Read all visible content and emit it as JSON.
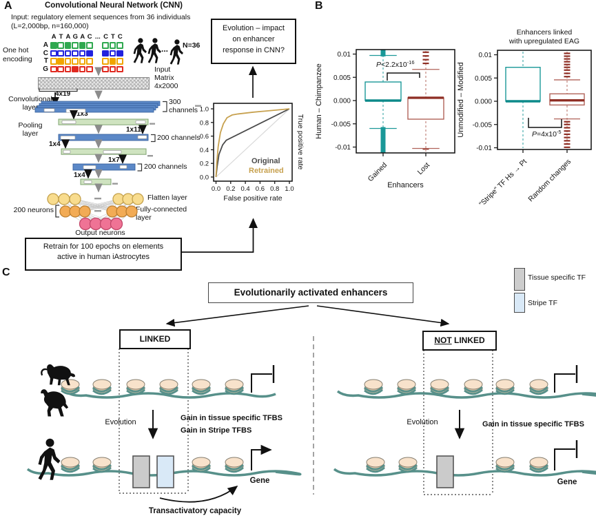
{
  "panel_a": {
    "label": "A",
    "title": "Convolutional Neural Network (CNN)",
    "input_line1": "Input: regulatory element sequences from 36 individuals",
    "input_line2": "(L=2,000bp, n=160,000)",
    "one_hot": {
      "label1": "One hot",
      "label2": "encoding",
      "columns_left": [
        "A",
        "T",
        "A",
        "G",
        "A",
        "C"
      ],
      "dots": "...",
      "columns_right": [
        "C",
        "T",
        "C"
      ],
      "rows": [
        {
          "base": "A",
          "color": "#2fa84f",
          "left": [
            1,
            0,
            1,
            0,
            1,
            0
          ],
          "right": [
            0,
            0,
            0
          ]
        },
        {
          "base": "C",
          "color": "#2222dd",
          "left": [
            0,
            0,
            0,
            0,
            0,
            1
          ],
          "right": [
            1,
            0,
            1
          ]
        },
        {
          "base": "T",
          "color": "#f0a500",
          "left": [
            0,
            1,
            0,
            0,
            0,
            0
          ],
          "right": [
            0,
            1,
            0
          ]
        },
        {
          "base": "G",
          "color": "#e02a21",
          "left": [
            0,
            0,
            0,
            1,
            0,
            0
          ],
          "right": [
            0,
            0,
            0
          ]
        }
      ]
    },
    "n_label": "N=36",
    "matrix_label1": "Input",
    "matrix_label2": "Matrix",
    "matrix_label3": "4x2000",
    "conv_label1": "Convolutional",
    "conv_label2": "layer",
    "pool_label1": "Pooling",
    "pool_label2": "layer",
    "k_4x19": "4x19",
    "k_1x3": "1x3",
    "k_1x11": "1x11",
    "k_1x4a": "1x4",
    "k_1x7": "1x7",
    "k_1x4b": "1x4",
    "ch300_1": "300",
    "ch300_2": "channels",
    "ch200a": "200 channels",
    "ch200b": "200 channels",
    "flatten_label": "Flatten layer",
    "neurons200": "200 neurons",
    "fc_label1": "Fully-connected",
    "fc_label2": "layer",
    "output_label": "Output neurons",
    "retrain_line1": "Retrain for 100 epochs on elements",
    "retrain_line2": "active in human iAstrocytes",
    "evolution_line1": "Evolution – impact",
    "evolution_line2": "on enhancer",
    "evolution_line3": "response in CNN?"
  },
  "panel_b": {
    "label": "B"
  },
  "chart_data": [
    {
      "type": "line",
      "name": "roc-curve",
      "xlabel": "False positive rate",
      "ylabel": "True positive rate",
      "xlim": [
        0,
        1
      ],
      "ylim": [
        0,
        1
      ],
      "xticks": [
        "0.0",
        "0.2",
        "0.4",
        "0.6",
        "0.8",
        "1.0"
      ],
      "yticks": [
        "0.0",
        "0.2",
        "0.4",
        "0.6",
        "0.8",
        "1.0"
      ],
      "series": [
        {
          "name": "Diagonal",
          "color": "#d9d9d9",
          "width": 1.2,
          "points": [
            [
              0,
              0
            ],
            [
              1,
              1
            ]
          ]
        },
        {
          "name": "Original",
          "color": "#4a4a4a",
          "width": 1.8,
          "points": [
            [
              0,
              0
            ],
            [
              0.015,
              0.15
            ],
            [
              0.04,
              0.33
            ],
            [
              0.09,
              0.47
            ],
            [
              0.14,
              0.54
            ],
            [
              1,
              1
            ]
          ]
        },
        {
          "name": "Retrained",
          "color": "#c7a14f",
          "width": 1.8,
          "points": [
            [
              0,
              0
            ],
            [
              0.01,
              0.2
            ],
            [
              0.03,
              0.45
            ],
            [
              0.06,
              0.65
            ],
            [
              0.1,
              0.78
            ],
            [
              0.15,
              0.87
            ],
            [
              0.22,
              0.91
            ],
            [
              0.3,
              0.925
            ],
            [
              0.5,
              0.95
            ],
            [
              0.75,
              0.975
            ],
            [
              1,
              1
            ]
          ]
        }
      ],
      "legend": [
        {
          "name": "Original",
          "color": "#4a4a4a"
        },
        {
          "name": "Retrained",
          "color": "#c7a14f"
        }
      ]
    },
    {
      "type": "boxplot",
      "name": "gained-lost-boxplot",
      "ylabel": "Human – Chimpanzee",
      "xlabel": "Enhancers",
      "ylim": [
        -0.0112,
        0.0109
      ],
      "yticks": [
        0.01,
        0.005,
        0,
        -0.005,
        -0.01
      ],
      "ytick_labels": [
        "0.01",
        "0.005",
        "0.000",
        "-0.005",
        "-0.01"
      ],
      "p_prefix": "P",
      "p_mid": "<2.2x10",
      "p_exp": "-16",
      "boxes": [
        {
          "label": "Gained",
          "color": "#1a9898",
          "median_color": "#0d8a8a",
          "q1": 0,
          "q3": 0.004,
          "median": 0,
          "whisker_high": 0.0097,
          "whisker_low": -0.006,
          "solid_high": [
            0.0095,
            0.0109
          ],
          "solid_low": [
            -0.0112,
            -0.0057
          ],
          "outlier_dashes_high": [],
          "outlier_dashes_low": []
        },
        {
          "label": "Lost",
          "color": "#b06258",
          "median_color": "#8f2f25",
          "q1": -0.004,
          "q3": 0.0006,
          "median": 0.0006,
          "whisker_high": 0.0067,
          "whisker_low": -0.0103,
          "outlier_dashes_high": [
            0.0104,
            0.0096,
            0.0088,
            0.008
          ],
          "outlier_dashes_low": [
            -0.0104
          ]
        }
      ]
    },
    {
      "type": "boxplot",
      "name": "stripe-random-boxplot",
      "title1": "Enhancers linked",
      "title2": "with upregulated EAG",
      "ylabel": "Unmodified – Modified",
      "xlabel": "",
      "ylim": [
        -0.0104,
        0.0109
      ],
      "yticks": [
        0.01,
        0.005,
        0,
        -0.005,
        -0.01
      ],
      "ytick_labels": [
        "0.01",
        "0.005",
        "0.000",
        "-0.005",
        "-0.01"
      ],
      "p_prefix": "P",
      "p_mid": "=4x10",
      "p_exp": "-5",
      "boxes": [
        {
          "label": "\"Stripe\" TF Hs → Pt",
          "color": "#1a9898",
          "median_color": "#0d8a8a",
          "q1": 0,
          "q3": 0.0073,
          "median": 0
        },
        {
          "label": "Random changes",
          "color": "#b06258",
          "median_color": "#8f2f25",
          "q1": -0.0008,
          "q3": 0.0016,
          "median": 0.0002,
          "whisker_high": 0.0046,
          "whisker_low": -0.0038,
          "outlier_dashes_high": [
            0.0103,
            0.0097,
            0.0091,
            0.0085,
            0.0079,
            0.0073,
            0.0067,
            0.006,
            0.0053
          ],
          "outlier_dashes_low": [
            -0.0044,
            -0.005,
            -0.0057,
            -0.0064,
            -0.0071,
            -0.0078,
            -0.0085,
            -0.0092,
            -0.0099
          ]
        }
      ]
    }
  ],
  "panel_c": {
    "label": "C",
    "header": "Evolutionarily activated enhancers",
    "legend": [
      {
        "name": "Tissue specific TF",
        "color": "#cdcdcd"
      },
      {
        "name": "Stripe TF",
        "color": "#d9e9f7"
      }
    ],
    "linked": "LINKED",
    "not_word": "NOT",
    "linked_word": " LINKED",
    "evolution_left": "Evolution",
    "evolution_right": "Evolution",
    "gain_left1": "Gain in tissue specific TFBS",
    "gain_left2": "Gain in Stripe TFBS",
    "gain_right": "Gain in tissue specific TFBS",
    "gene_left": "Gene",
    "gene_right": "Gene",
    "transactivatory": "Transactivatory capacity"
  },
  "colors": {
    "dna": "#57908a",
    "nucleosome_fill": "#f4d6b5",
    "nucleosome_top": "#f8e2cb",
    "teal_box": "#1a9898",
    "red_box": "#b06258",
    "retrained_line": "#c7a14f"
  }
}
